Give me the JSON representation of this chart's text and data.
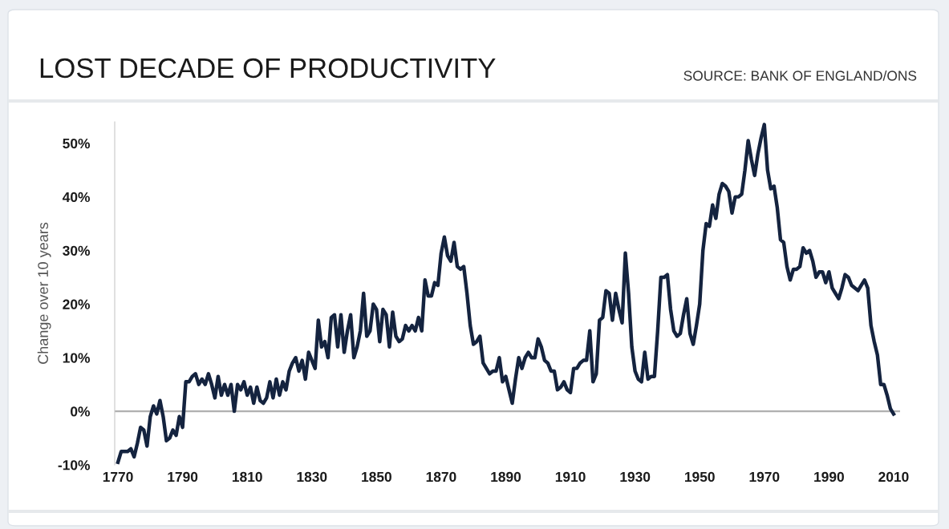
{
  "chart_data": {
    "type": "line",
    "title": "LOST DECADE OF PRODUCTIVITY",
    "ylabel": "Change over 10 years",
    "annotations": [
      "SOURCE: BANK OF ENGLAND/ONS"
    ],
    "x": [
      1770,
      1771,
      1772,
      1773,
      1774,
      1775,
      1776,
      1777,
      1778,
      1779,
      1780,
      1781,
      1782,
      1783,
      1784,
      1785,
      1786,
      1787,
      1788,
      1789,
      1790,
      1791,
      1792,
      1793,
      1794,
      1795,
      1796,
      1797,
      1798,
      1799,
      1800,
      1801,
      1802,
      1803,
      1804,
      1805,
      1806,
      1807,
      1808,
      1809,
      1810,
      1811,
      1812,
      1813,
      1814,
      1815,
      1816,
      1817,
      1818,
      1819,
      1820,
      1821,
      1822,
      1823,
      1824,
      1825,
      1826,
      1827,
      1828,
      1829,
      1830,
      1831,
      1832,
      1833,
      1834,
      1835,
      1836,
      1837,
      1838,
      1839,
      1840,
      1841,
      1842,
      1843,
      1844,
      1845,
      1846,
      1847,
      1848,
      1849,
      1850,
      1851,
      1852,
      1853,
      1854,
      1855,
      1856,
      1857,
      1858,
      1859,
      1860,
      1861,
      1862,
      1863,
      1864,
      1865,
      1866,
      1867,
      1868,
      1869,
      1870,
      1871,
      1872,
      1873,
      1874,
      1875,
      1876,
      1877,
      1878,
      1879,
      1880,
      1881,
      1882,
      1883,
      1884,
      1885,
      1886,
      1887,
      1888,
      1889,
      1890,
      1891,
      1892,
      1893,
      1894,
      1895,
      1896,
      1897,
      1898,
      1899,
      1900,
      1901,
      1902,
      1903,
      1904,
      1905,
      1906,
      1907,
      1908,
      1909,
      1910,
      1911,
      1912,
      1913,
      1914,
      1915,
      1916,
      1917,
      1918,
      1919,
      1920,
      1921,
      1922,
      1923,
      1924,
      1925,
      1926,
      1927,
      1928,
      1929,
      1930,
      1931,
      1932,
      1933,
      1934,
      1935,
      1936,
      1937,
      1938,
      1939,
      1940,
      1941,
      1942,
      1943,
      1944,
      1945,
      1946,
      1947,
      1948,
      1949,
      1950,
      1951,
      1952,
      1953,
      1954,
      1955,
      1956,
      1957,
      1958,
      1959,
      1960,
      1961,
      1962,
      1963,
      1964,
      1965,
      1966,
      1967,
      1968,
      1969,
      1970,
      1971,
      1972,
      1973,
      1974,
      1975,
      1976,
      1977,
      1978,
      1979,
      1980,
      1981,
      1982,
      1983,
      1984,
      1985,
      1986,
      1987,
      1988,
      1989,
      1990,
      1991,
      1992,
      1993,
      1994,
      1995,
      1996,
      1997,
      1998,
      1999,
      2000,
      2001,
      2002,
      2003,
      2004,
      2005,
      2006,
      2007,
      2008,
      2009,
      2010
    ],
    "series": [
      {
        "color": "#14233f",
        "values": [
          -9.5,
          -7.5,
          -7.5,
          -7.5,
          -7,
          -8.5,
          -6,
          -3,
          -3.5,
          -6.5,
          -1,
          1,
          -0.5,
          2,
          -1,
          -5.5,
          -5,
          -3.5,
          -4.5,
          -1,
          -3,
          5.5,
          5.5,
          6.5,
          7,
          5,
          6,
          5,
          7,
          5,
          2.5,
          6.5,
          3,
          5,
          3,
          5,
          0,
          5,
          4,
          5.5,
          3,
          4.5,
          1.5,
          4.5,
          2,
          1.5,
          2.5,
          5.5,
          2.5,
          6,
          3,
          5.5,
          4,
          7.5,
          9,
          10,
          7.5,
          9.5,
          6,
          11,
          9.5,
          8,
          17,
          12,
          13,
          10,
          17.5,
          18,
          12,
          18,
          11,
          15,
          18,
          10,
          12,
          15,
          22,
          14,
          15,
          20,
          19,
          13,
          19,
          18,
          12,
          18.5,
          14,
          13,
          13.5,
          16,
          15,
          16,
          15,
          17.5,
          15,
          24.5,
          21.5,
          21.5,
          24,
          23.5,
          29.5,
          32.5,
          29,
          28,
          31.5,
          27,
          26.5,
          27,
          22,
          16,
          12.5,
          13,
          14,
          9,
          8,
          7,
          7.5,
          7.5,
          10,
          5.5,
          6.5,
          4,
          1.5,
          6,
          10,
          8,
          10,
          11,
          10,
          10,
          13.5,
          12,
          9.5,
          9,
          7.5,
          7.5,
          4,
          4.5,
          5.5,
          4,
          3.5,
          8,
          8,
          9,
          9.5,
          9.5,
          15,
          5.5,
          7,
          17,
          17.5,
          22.5,
          22,
          17,
          22,
          19,
          16.5,
          29.5,
          22,
          12,
          7.5,
          6,
          5.5,
          11,
          6,
          6.5,
          6.5,
          15,
          25,
          25,
          25.5,
          19,
          15,
          14,
          14.5,
          18,
          21,
          14.5,
          12.5,
          16,
          20,
          30,
          35,
          34.5,
          38.5,
          36,
          40.5,
          42.5,
          42,
          41,
          37,
          40,
          40,
          40.5,
          45,
          50.5,
          47,
          44,
          48,
          51,
          53.5,
          45,
          41.5,
          42,
          38,
          32,
          31.5,
          27,
          24.5,
          26.5,
          26.5,
          27,
          30.5,
          29.5,
          30,
          28,
          25,
          26,
          26,
          24,
          26,
          23,
          22,
          21,
          23,
          25.5,
          25,
          23.5,
          23,
          22.5,
          23.5,
          24.5,
          23,
          16,
          13,
          10.5,
          5,
          5,
          3,
          0.5,
          -0.5
        ]
      }
    ],
    "xlim": [
      1769,
      2012
    ],
    "xticks": [
      1770,
      1790,
      1810,
      1830,
      1850,
      1870,
      1890,
      1910,
      1930,
      1950,
      1970,
      1990,
      2010
    ],
    "ylim": [
      -10,
      54
    ],
    "yticks": [
      {
        "value": -10,
        "label": "-10%"
      },
      {
        "value": 0,
        "label": "0%"
      },
      {
        "value": 10,
        "label": "10%"
      },
      {
        "value": 20,
        "label": "20%"
      },
      {
        "value": 30,
        "label": "30%"
      },
      {
        "value": 40,
        "label": "40%"
      },
      {
        "value": 50,
        "label": "50%"
      }
    ],
    "ref_lines": [
      {
        "axis": "y",
        "value": 0,
        "color": "#b0b0b0"
      }
    ],
    "grid": false,
    "line_style": "solid",
    "marker": "none"
  }
}
